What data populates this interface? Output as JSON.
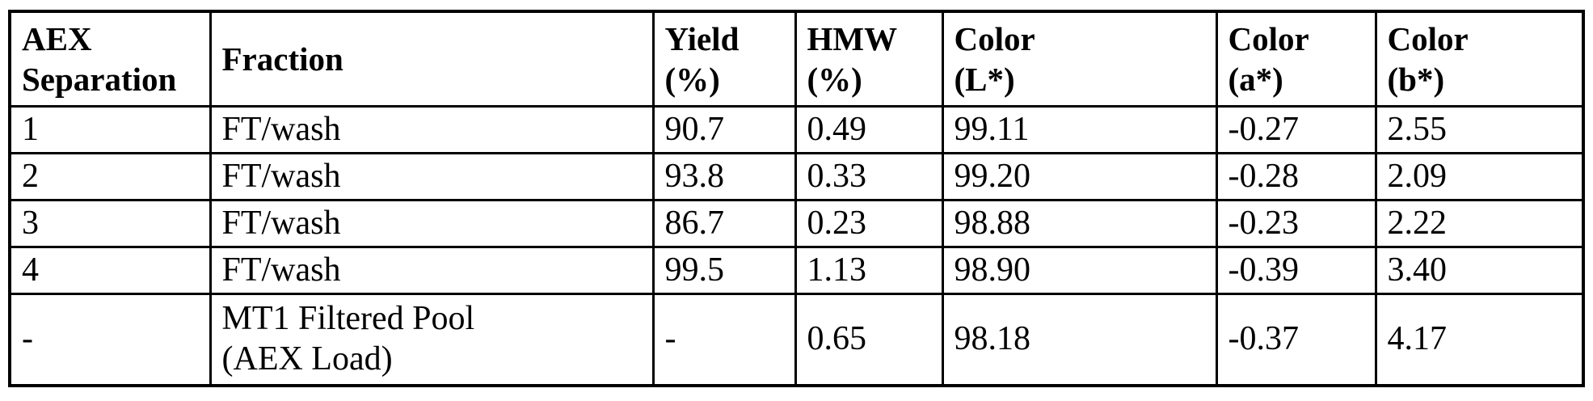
{
  "table": {
    "headers": [
      "AEX\nSeparation",
      "Fraction",
      "Yield\n(%)",
      "HMW\n(%)",
      "Color\n(L*)",
      "Color\n(a*)",
      "Color\n(b*)"
    ],
    "rows": [
      [
        "1",
        "FT/wash",
        "90.7",
        "0.49",
        "99.11",
        "-0.27",
        "2.55"
      ],
      [
        "2",
        "FT/wash",
        "93.8",
        "0.33",
        "99.20",
        "-0.28",
        "2.09"
      ],
      [
        "3",
        "FT/wash",
        "86.7",
        "0.23",
        "98.88",
        "-0.23",
        "2.22"
      ],
      [
        "4",
        "FT/wash",
        "99.5",
        "1.13",
        "98.90",
        "-0.39",
        "3.40"
      ],
      [
        "-",
        "MT1 Filtered Pool\n(AEX Load)",
        "-",
        "0.65",
        "98.18",
        "-0.37",
        "4.17"
      ]
    ],
    "colors": {
      "border": "#000000",
      "text": "#000000",
      "background": "#ffffff"
    }
  }
}
